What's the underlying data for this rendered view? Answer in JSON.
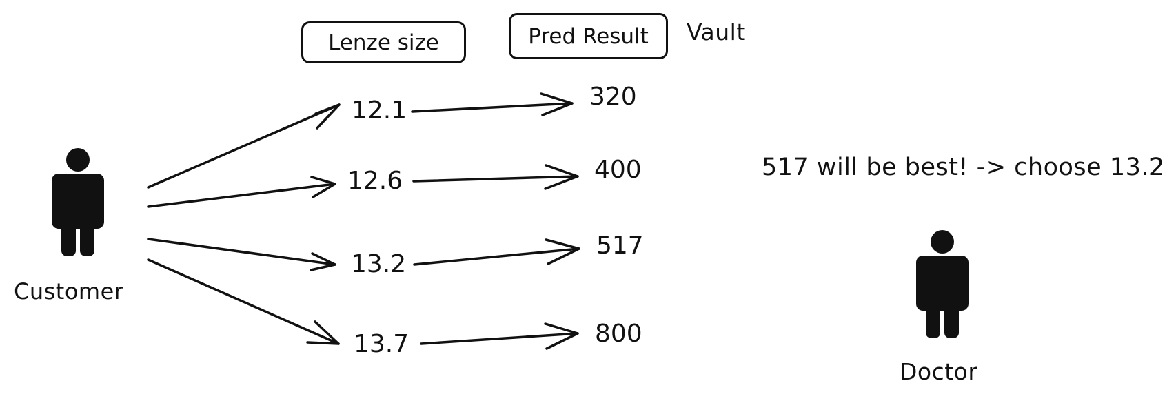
{
  "headers": {
    "lens_size": "Lenze size",
    "pred_result": "Pred Result",
    "vault": "Vault"
  },
  "actors": {
    "customer": "Customer",
    "doctor": "Doctor"
  },
  "rows": [
    {
      "lens_size": "12.1",
      "result": "320"
    },
    {
      "lens_size": "12.6",
      "result": "400"
    },
    {
      "lens_size": "13.2",
      "result": "517"
    },
    {
      "lens_size": "13.7",
      "result": "800"
    }
  ],
  "conclusion": "517 will be best! -> choose 13.2",
  "colors": {
    "ink": "#111111",
    "background": "#ffffff"
  }
}
